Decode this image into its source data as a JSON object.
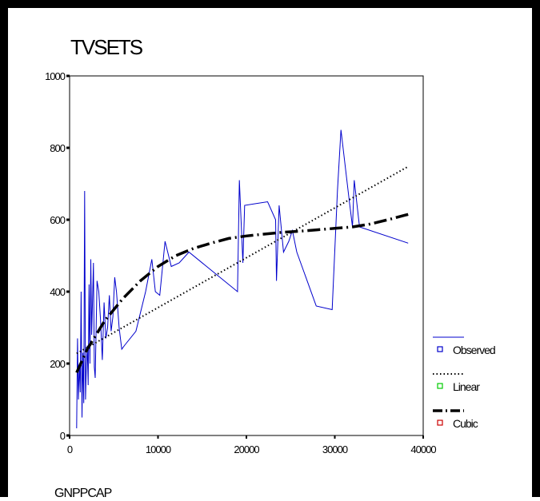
{
  "chart_data": {
    "type": "line",
    "title": "TVSETS",
    "xlabel": "GNPPCAP",
    "ylabel": "",
    "xlim": [
      0,
      40000
    ],
    "ylim": [
      0,
      1000
    ],
    "xticks": [
      0,
      10000,
      20000,
      30000,
      40000
    ],
    "yticks": [
      0,
      200,
      400,
      600,
      800,
      1000
    ],
    "grid": false,
    "legend_position": "right",
    "series": [
      {
        "name": "Observed",
        "style": "solid",
        "color": "#0000cc",
        "points": [
          [
            800,
            20
          ],
          [
            900,
            270
          ],
          [
            1000,
            100
          ],
          [
            1100,
            200
          ],
          [
            1200,
            120
          ],
          [
            1300,
            400
          ],
          [
            1400,
            50
          ],
          [
            1500,
            230
          ],
          [
            1600,
            90
          ],
          [
            1700,
            680
          ],
          [
            1800,
            100
          ],
          [
            1900,
            200
          ],
          [
            2000,
            250
          ],
          [
            2100,
            140
          ],
          [
            2200,
            420
          ],
          [
            2300,
            200
          ],
          [
            2400,
            490
          ],
          [
            2500,
            280
          ],
          [
            2700,
            480
          ],
          [
            2800,
            190
          ],
          [
            2900,
            160
          ],
          [
            3100,
            430
          ],
          [
            3300,
            400
          ],
          [
            3500,
            320
          ],
          [
            3700,
            210
          ],
          [
            3900,
            370
          ],
          [
            4100,
            270
          ],
          [
            4300,
            300
          ],
          [
            4500,
            390
          ],
          [
            4700,
            290
          ],
          [
            4900,
            330
          ],
          [
            5100,
            440
          ],
          [
            5300,
            400
          ],
          [
            5600,
            300
          ],
          [
            5900,
            240
          ],
          [
            6200,
            250
          ],
          [
            7500,
            290
          ],
          [
            8600,
            400
          ],
          [
            9300,
            490
          ],
          [
            9700,
            400
          ],
          [
            10200,
            390
          ],
          [
            10800,
            540
          ],
          [
            11500,
            470
          ],
          [
            12400,
            480
          ],
          [
            13500,
            510
          ],
          [
            19000,
            400
          ],
          [
            19200,
            710
          ],
          [
            19600,
            480
          ],
          [
            19800,
            640
          ],
          [
            22400,
            650
          ],
          [
            23300,
            600
          ],
          [
            23400,
            430
          ],
          [
            23700,
            640
          ],
          [
            24200,
            510
          ],
          [
            24800,
            540
          ],
          [
            25200,
            570
          ],
          [
            25700,
            510
          ],
          [
            27900,
            360
          ],
          [
            29700,
            350
          ],
          [
            30300,
            680
          ],
          [
            30700,
            850
          ],
          [
            31600,
            660
          ],
          [
            32000,
            580
          ],
          [
            32200,
            710
          ],
          [
            32800,
            580
          ],
          [
            38300,
            535
          ]
        ]
      },
      {
        "name": "Linear",
        "style": "dotted",
        "color": "#000000",
        "points": [
          [
            800,
            228
          ],
          [
            38300,
            748
          ]
        ]
      },
      {
        "name": "Cubic",
        "style": "dashdot",
        "color": "#000000",
        "points": [
          [
            800,
            175
          ],
          [
            2000,
            240
          ],
          [
            4000,
            320
          ],
          [
            6000,
            380
          ],
          [
            8000,
            430
          ],
          [
            10000,
            470
          ],
          [
            12000,
            500
          ],
          [
            14000,
            520
          ],
          [
            16000,
            535
          ],
          [
            18000,
            548
          ],
          [
            20000,
            555
          ],
          [
            22000,
            560
          ],
          [
            24000,
            565
          ],
          [
            26000,
            568
          ],
          [
            28000,
            572
          ],
          [
            30000,
            576
          ],
          [
            32000,
            580
          ],
          [
            34000,
            588
          ],
          [
            36000,
            600
          ],
          [
            38300,
            615
          ]
        ]
      }
    ]
  }
}
